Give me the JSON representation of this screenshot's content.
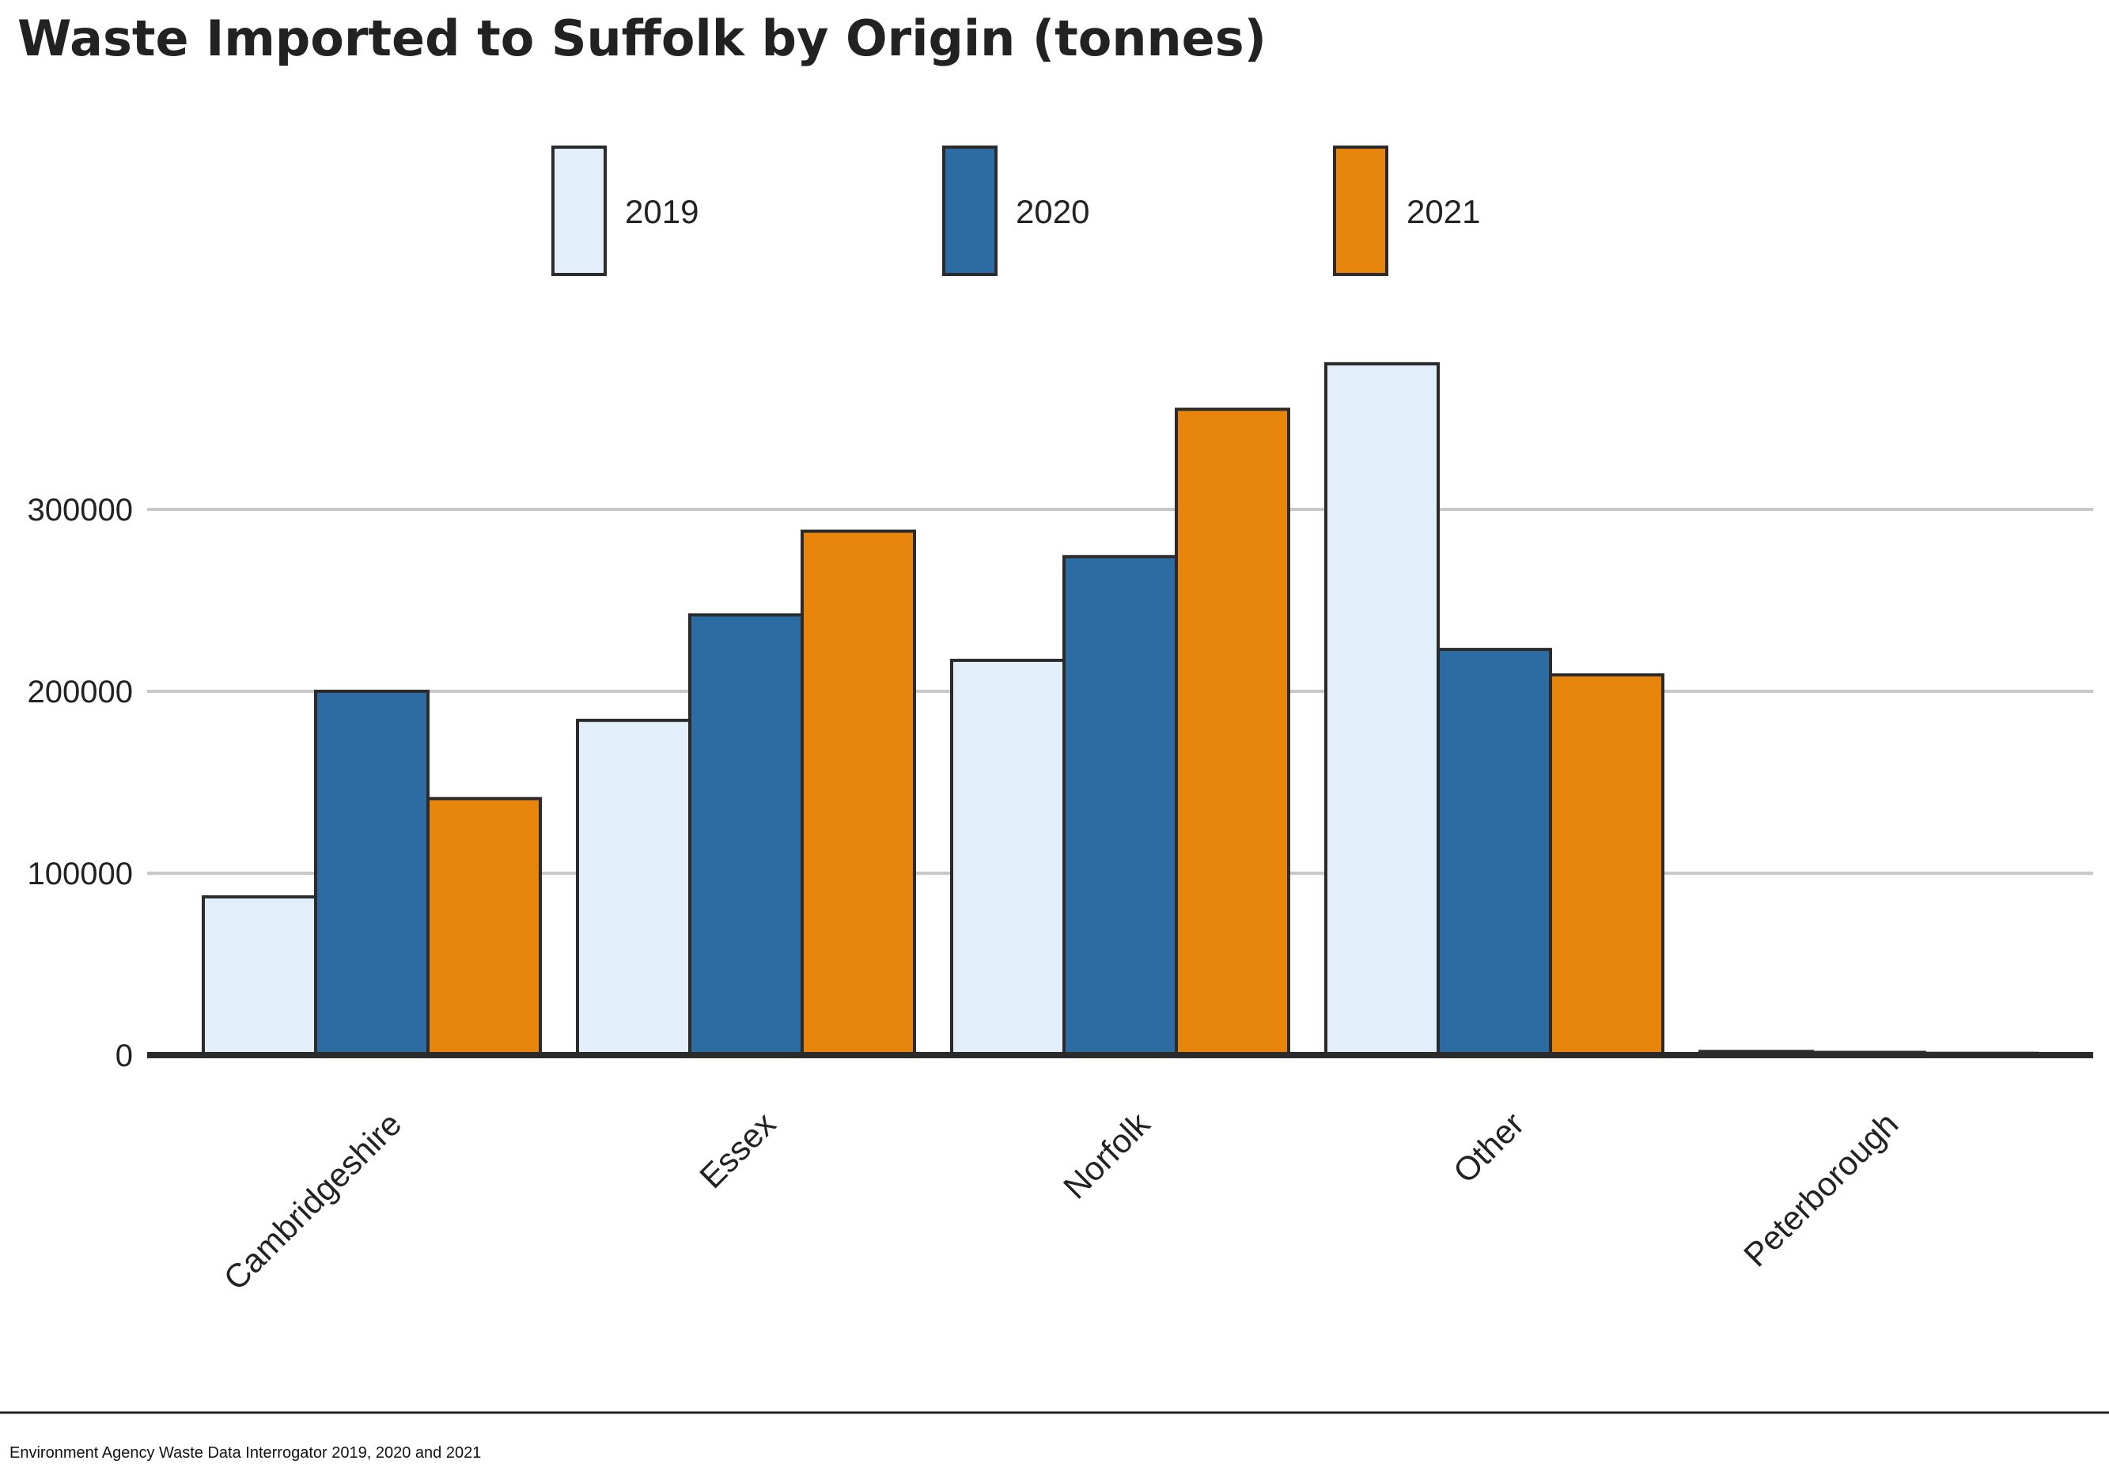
{
  "chart_data": {
    "type": "bar",
    "title": "Waste Imported to Suffolk by Origin (tonnes)",
    "xlabel": "",
    "ylabel": "",
    "categories": [
      "Cambridgeshire",
      "Essex",
      "Norfolk",
      "Other",
      "Peterborough"
    ],
    "series": [
      {
        "name": "2019",
        "color": "#e2eef9",
        "values": [
          87000,
          184000,
          217000,
          380000,
          2000
        ]
      },
      {
        "name": "2020",
        "color": "#2d6ca2",
        "values": [
          200000,
          242000,
          274000,
          223000,
          1500
        ]
      },
      {
        "name": "2021",
        "color": "#e8850c",
        "values": [
          141000,
          288000,
          355000,
          209000,
          1000
        ]
      }
    ],
    "yticks": [
      0,
      100000,
      200000,
      300000
    ],
    "ytick_labels": [
      "0",
      "100000",
      "200000",
      "300000"
    ],
    "ylim": [
      0,
      400000
    ],
    "grid": true,
    "legend_position": "top-center",
    "source": "Environment Agency Waste Data Interrogator 2019, 2020 and 2021"
  }
}
